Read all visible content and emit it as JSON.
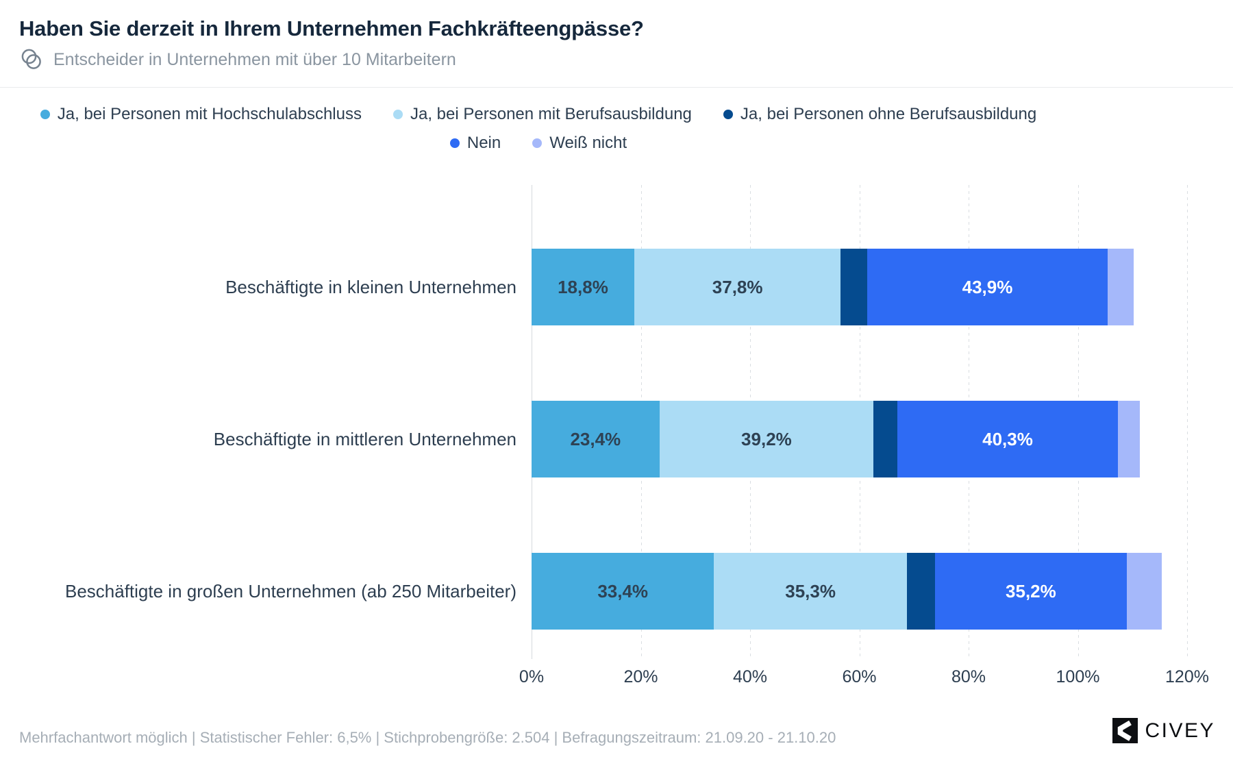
{
  "header": {
    "title": "Haben Sie derzeit in Ihrem Unternehmen Fachkräfteengpässe?",
    "subtitle": "Entscheider in Unternehmen mit über 10 Mitarbeitern"
  },
  "legend": {
    "rows": [
      [
        {
          "label": "Ja, bei Personen mit Hochschulabschluss",
          "color": "#46ACDE"
        },
        {
          "label": "Ja, bei Personen mit Berufsausbildung",
          "color": "#ABDCF5"
        },
        {
          "label": "Ja, bei Personen ohne Berufsausbildung",
          "color": "#054B8F"
        }
      ],
      [
        {
          "label": "Nein",
          "color": "#2E6BF4"
        },
        {
          "label": "Weiß nicht",
          "color": "#A5B8FA"
        }
      ]
    ]
  },
  "chart_data": {
    "type": "bar",
    "orientation": "horizontal",
    "stacked": true,
    "categories": [
      "Beschäftigte in kleinen Unternehmen",
      "Beschäftigte in mittleren Unternehmen",
      "Beschäftigte in großen Unternehmen (ab 250 Mitarbeiter)"
    ],
    "series": [
      {
        "name": "Ja, bei Personen mit Hochschulabschluss",
        "color": "#46ACDE",
        "values": [
          18.8,
          23.4,
          33.4
        ],
        "labels": [
          "18,8%",
          "23,4%",
          "33,4%"
        ],
        "label_color": "#2E4254"
      },
      {
        "name": "Ja, bei Personen mit Berufsausbildung",
        "color": "#ABDCF5",
        "values": [
          37.8,
          39.2,
          35.3
        ],
        "labels": [
          "37,8%",
          "39,2%",
          "35,3%"
        ],
        "label_color": "#2E4254"
      },
      {
        "name": "Ja, bei Personen ohne Berufsausbildung",
        "color": "#054B8F",
        "values": [
          4.9,
          4.4,
          5.1
        ],
        "labels": [
          "",
          "",
          ""
        ],
        "label_color": "#FFFFFF"
      },
      {
        "name": "Nein",
        "color": "#2E6BF4",
        "values": [
          43.9,
          40.3,
          35.2
        ],
        "labels": [
          "43,9%",
          "40,3%",
          "35,2%"
        ],
        "label_color": "#FFFFFF"
      },
      {
        "name": "Weiß nicht",
        "color": "#A5B8FA",
        "values": [
          4.8,
          4.1,
          6.3
        ],
        "labels": [
          "",
          "",
          ""
        ],
        "label_color": "#2E4254"
      }
    ],
    "xlim": [
      0,
      120
    ],
    "x_ticks": [
      "0%",
      "20%",
      "40%",
      "60%",
      "80%",
      "100%",
      "120%"
    ],
    "grid": "vertical-dashed",
    "legend_position": "top",
    "title": "Haben Sie derzeit in Ihrem Unternehmen Fachkräfteengpässe?",
    "xlabel": "",
    "ylabel": ""
  },
  "footer": {
    "text": "Mehrfachantwort möglich | Statistischer Fehler: 6,5% | Stichprobengröße: 2.504 | Befragungszeitraum: 21.09.20 - 21.10.20"
  },
  "branding": {
    "logo_text": "CIVEY"
  }
}
